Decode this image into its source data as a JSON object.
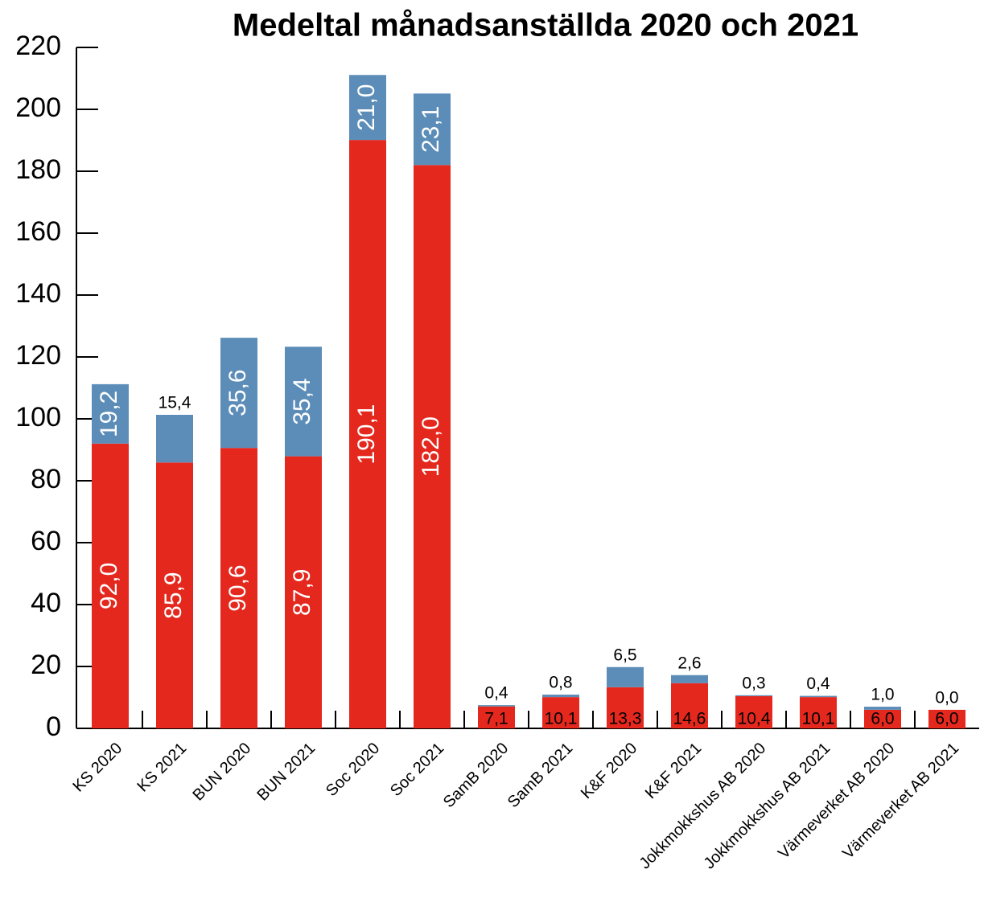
{
  "chart_data": {
    "type": "stacked_bar",
    "title": "Medeltal månadsanställda 2020 och 2021",
    "categories": [
      "KS 2020",
      "KS 2021",
      "BUN 2020",
      "BUN 2021",
      "Soc 2020",
      "Soc 2021",
      "SamB 2020",
      "SamB 2021",
      "K&F 2020",
      "K&F 2021",
      "Jokkmokkshus AB 2020",
      "Jokkmokkshus AB 2021",
      "Värmeverket AB 2020",
      "Värmeverket AB 2021"
    ],
    "series": [
      {
        "color": "#e4281e",
        "values": [
          92.0,
          85.9,
          90.6,
          87.9,
          190.1,
          182.0,
          7.1,
          10.1,
          13.3,
          14.6,
          10.4,
          10.1,
          6.0,
          6.0
        ],
        "value_labels": [
          "92,0",
          "85,9",
          "90,6",
          "87,9",
          "190,1",
          "182,0",
          "7,1",
          "10,1",
          "13,3",
          "14,6",
          "10,4",
          "10,1",
          "6,0",
          "6,0"
        ]
      },
      {
        "color": "#5b8db8",
        "values": [
          19.2,
          15.4,
          35.6,
          35.4,
          21.0,
          23.1,
          0.4,
          0.8,
          6.5,
          2.6,
          0.3,
          0.4,
          1.0,
          0.0
        ],
        "value_labels": [
          "19,2",
          "15,4",
          "35,6",
          "35,4",
          "21,0",
          "23,1",
          "0,4",
          "0,8",
          "6,5",
          "2,6",
          "0,3",
          "0,4",
          "1,0",
          "0,0"
        ]
      }
    ],
    "ylim": [
      0,
      220
    ],
    "yticks": [
      0,
      20,
      40,
      60,
      80,
      100,
      120,
      140,
      160,
      180,
      200,
      220
    ]
  }
}
